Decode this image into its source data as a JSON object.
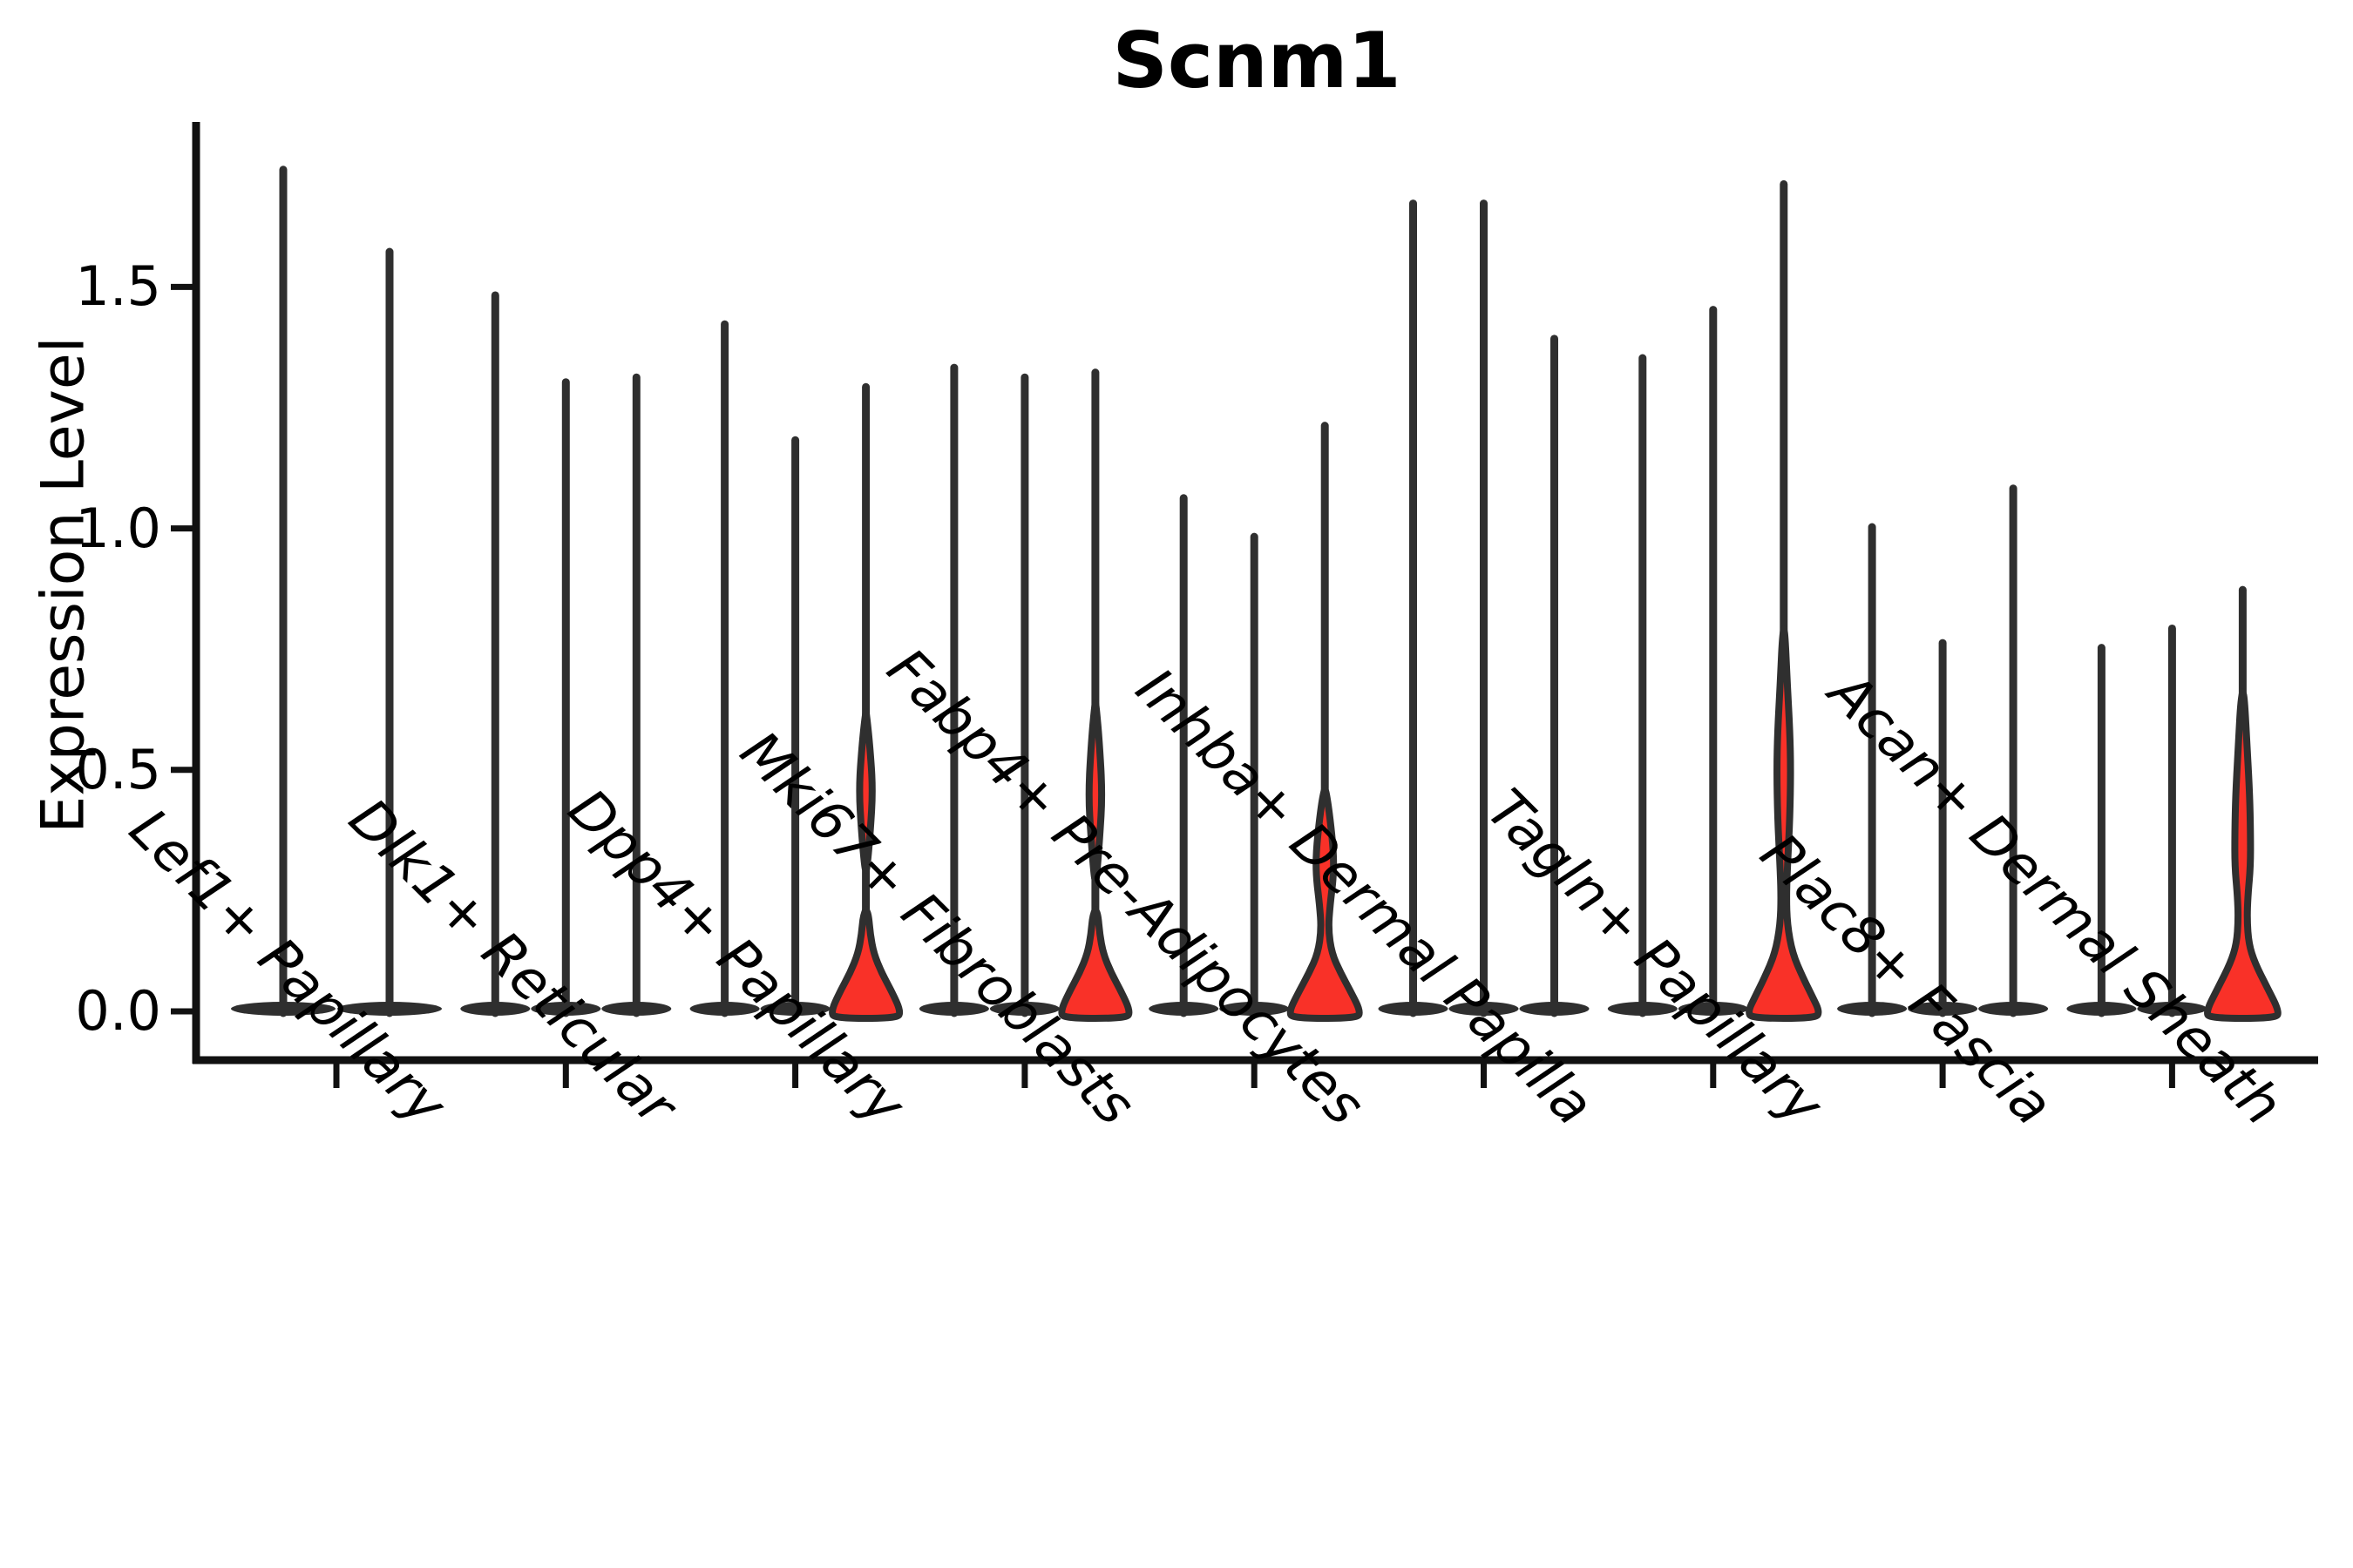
{
  "title": "Scnm1",
  "ylabel": "Expression Level",
  "colors": {
    "violin_fill": "#F93128",
    "violin_outline": "#2F2F2F",
    "axis": "#111111",
    "text": "#000000"
  },
  "chart_data": {
    "type": "violin",
    "title": "Scnm1",
    "xlabel": "",
    "ylabel": "Expression Level",
    "ylim": [
      -0.1,
      1.84
    ],
    "yticks": [
      0.0,
      0.5,
      1.0,
      1.5
    ],
    "ytick_labels": [
      "0.0",
      "0.5",
      "1.0",
      "1.5"
    ],
    "grid": false,
    "legend": null,
    "categories": [
      "Lef1+ Papillary",
      "Dlk1+ Reticular",
      "Dpp4+ Papillary",
      "Mki67+ Fibroblasts",
      "Fabp4+ Pre-Adipocytes",
      "Inhba+ Dermal Papilla",
      "Tagln+ Papillary",
      "Plac8+ Fascia",
      "Acan+ Dermal Sheath"
    ],
    "groups": [
      {
        "label": "Lef1+ Papillary",
        "violins": [
          {
            "max": 1.75,
            "red": false
          },
          {
            "max": 1.58,
            "red": false
          }
        ]
      },
      {
        "label": "Dlk1+ Reticular",
        "violins": [
          {
            "max": 1.49,
            "red": false
          },
          {
            "max": 1.31,
            "red": false
          },
          {
            "max": 1.32,
            "red": false
          }
        ]
      },
      {
        "label": "Dpp4+ Papillary",
        "violins": [
          {
            "max": 1.43,
            "red": false
          },
          {
            "max": 1.19,
            "red": false
          },
          {
            "max": 1.3,
            "red": true,
            "lens": [
              [
                0.61,
                1
              ],
              [
                0.55,
                4.5
              ],
              [
                0.46,
                8
              ],
              [
                0.37,
                5
              ],
              [
                0.3,
                1.5
              ]
            ],
            "flare": [
              [
                0.2,
                3
              ],
              [
                0.16,
                5
              ],
              [
                0.12,
                9
              ],
              [
                0.08,
                18
              ],
              [
                0.04,
                30
              ],
              [
                0.0,
                40
              ]
            ]
          }
        ]
      },
      {
        "label": "Mki67+ Fibroblasts",
        "violins": [
          {
            "max": 1.34,
            "red": false
          },
          {
            "max": 1.32,
            "red": false
          },
          {
            "max": 1.33,
            "red": true,
            "lens": [
              [
                0.63,
                1
              ],
              [
                0.56,
                4.5
              ],
              [
                0.45,
                8
              ],
              [
                0.36,
                5
              ],
              [
                0.28,
                1.5
              ]
            ],
            "flare": [
              [
                0.2,
                3
              ],
              [
                0.16,
                5
              ],
              [
                0.12,
                9
              ],
              [
                0.08,
                18
              ],
              [
                0.04,
                30
              ],
              [
                0.0,
                40
              ]
            ]
          }
        ]
      },
      {
        "label": "Fabp4+ Pre-Adipocytes",
        "violins": [
          {
            "max": 1.07,
            "red": false
          },
          {
            "max": 0.99,
            "red": false
          },
          {
            "max": 1.22,
            "red": true,
            "column": [
              [
                0.45,
                2
              ],
              [
                0.4,
                6
              ],
              [
                0.33,
                10
              ],
              [
                0.28,
                10
              ],
              [
                0.22,
                6
              ],
              [
                0.17,
                4
              ],
              [
                0.12,
                8
              ],
              [
                0.08,
                18
              ],
              [
                0.04,
                30
              ],
              [
                0.0,
                41
              ]
            ]
          }
        ]
      },
      {
        "label": "Inhba+ Dermal Papilla",
        "violins": [
          {
            "max": 1.68,
            "red": false
          },
          {
            "max": 1.68,
            "red": false
          },
          {
            "max": 1.4,
            "red": false
          }
        ]
      },
      {
        "label": "Tagln+ Papillary",
        "violins": [
          {
            "max": 1.36,
            "red": false
          },
          {
            "max": 1.46,
            "red": false
          },
          {
            "max": 1.72,
            "red": true,
            "column": [
              [
                0.78,
                1.5
              ],
              [
                0.68,
                4
              ],
              [
                0.58,
                7
              ],
              [
                0.5,
                8
              ],
              [
                0.4,
                7
              ],
              [
                0.31,
                4.5
              ],
              [
                0.24,
                3
              ],
              [
                0.18,
                4
              ],
              [
                0.12,
                10
              ],
              [
                0.07,
                22
              ],
              [
                0.03,
                33
              ],
              [
                0.0,
                41
              ]
            ]
          }
        ]
      },
      {
        "label": "Plac8+ Fascia",
        "violins": [
          {
            "max": 1.01,
            "red": false
          },
          {
            "max": 0.77,
            "red": false
          },
          {
            "max": 1.09,
            "red": false
          }
        ]
      },
      {
        "label": "Acan+ Dermal Sheath",
        "violins": [
          {
            "max": 0.76,
            "red": false
          },
          {
            "max": 0.8,
            "red": false
          },
          {
            "max": 0.88,
            "red": true,
            "column": [
              [
                0.65,
                2
              ],
              [
                0.55,
                5
              ],
              [
                0.45,
                8
              ],
              [
                0.37,
                9
              ],
              [
                0.3,
                9
              ],
              [
                0.24,
                6
              ],
              [
                0.19,
                5
              ],
              [
                0.14,
                7
              ],
              [
                0.1,
                14
              ],
              [
                0.05,
                28
              ],
              [
                0.0,
                42
              ]
            ]
          }
        ]
      }
    ]
  }
}
